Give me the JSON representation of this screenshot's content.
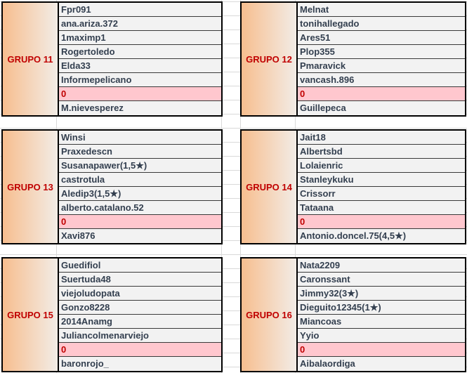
{
  "groups": [
    {
      "label": "GRUPO 11",
      "members": [
        "Fpr091",
        "ana.ariza.372",
        "1maximp1",
        "Rogertoledo",
        "Elda33",
        "Informepelicano",
        "0",
        "M.nievesperez"
      ]
    },
    {
      "label": "GRUPO 12",
      "members": [
        "Melnat",
        "tonihallegado",
        "Ares51",
        "Plop355",
        "Pmaravick",
        "vancash.896",
        "0",
        "Guillepeca"
      ]
    },
    {
      "label": "GRUPO 13",
      "members": [
        "Winsi",
        "Praxedescn",
        "Susanapawer(1,5★)",
        "castrotula",
        "Aledip3(1,5★)",
        "alberto.catalano.52",
        "0",
        "Xavi876"
      ]
    },
    {
      "label": "GRUPO 14",
      "members": [
        "Jait18",
        "Albertsbd",
        "Lolaienric",
        "Stanleykuku",
        "Crissorr",
        "Tataana",
        "0",
        "Antonio.doncel.75(4,5★)"
      ]
    },
    {
      "label": "GRUPO 15",
      "members": [
        "Guedifiol",
        "Suertuda48",
        "viejoludopata",
        "Gonzo8228",
        "2014Anamg",
        "Juliancolmenarviejo",
        "0",
        "baronrojo_"
      ]
    },
    {
      "label": "GRUPO 16",
      "members": [
        "Nata2209",
        "Caronssant",
        "Jimmy32(3★)",
        "Dieguito12345(1★)",
        "Miancoas",
        "Yyio",
        "0",
        "Aibalaordiga"
      ]
    }
  ],
  "colors": {
    "label_text": "#c00000",
    "empty_fill": "#ffc7ce",
    "label_gradient_start": "#f7be8f"
  }
}
